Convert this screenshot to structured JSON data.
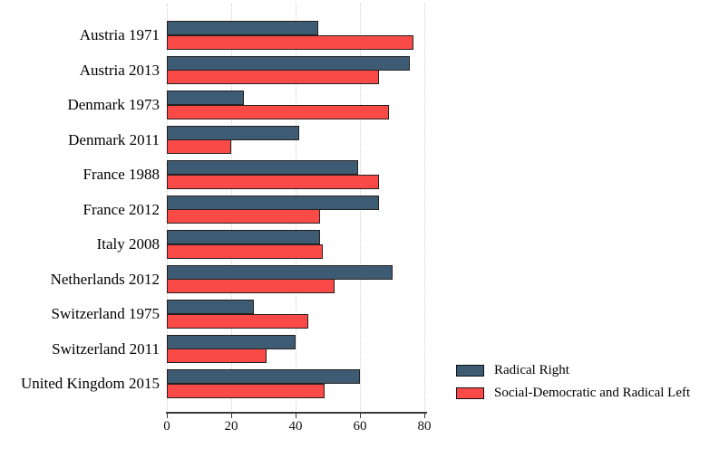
{
  "chart_data": {
    "type": "bar",
    "orientation": "horizontal",
    "title": "",
    "xlabel": "",
    "ylabel": "",
    "categories": [
      "Austria 1971",
      "Austria 2013",
      "Denmark 1973",
      "Denmark 2011",
      "France 1988",
      "France 2012",
      "Italy 2008",
      "Netherlands 2012",
      "Switzerland 1975",
      "Switzerland 2011",
      "United Kingdom 2015"
    ],
    "series": [
      {
        "name": "Radical Right",
        "color": "#3d5c74",
        "values": [
          47,
          75.5,
          24,
          41,
          59.5,
          66,
          47.5,
          70,
          27,
          40,
          60
        ]
      },
      {
        "name": "Social-Democratic and Radical Left",
        "color": "#fa4a47",
        "values": [
          76.5,
          66,
          69,
          20,
          66,
          47.5,
          48.5,
          52,
          44,
          31,
          49
        ]
      }
    ],
    "xlim": [
      0,
      80
    ],
    "xticks": [
      0,
      20,
      40,
      60,
      80
    ],
    "tick_labels": [
      "0",
      "20",
      "40",
      "60",
      "80"
    ],
    "grid": "vertical-dotted",
    "legend_position": "right-bottom",
    "colors": {
      "radical_right": "#3d5c74",
      "social_democratic_radical_left": "#fa4a47",
      "bar_border": "#26201f",
      "axis": "#3a3a3a",
      "gridline": "#cfcfcf",
      "background": "#ffffff"
    }
  }
}
